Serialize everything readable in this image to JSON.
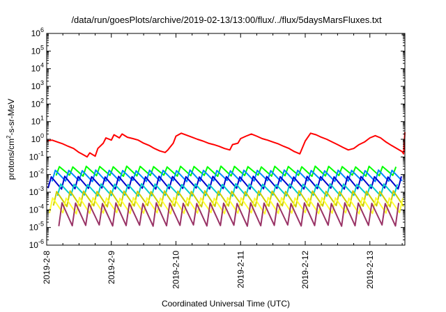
{
  "chart_data": {
    "type": "line",
    "title": "/data/run/goesPlots/archive/2019-02-13/13:00/flux/../flux/5daysMarsFluxes.txt",
    "xlabel": "Coordinated Universal Time (UTC)",
    "ylabel_parts": [
      "protons/cm",
      "2",
      "-s-sr-MeV"
    ],
    "y_scale": "log",
    "ylim": [
      1e-06,
      1000000.0
    ],
    "xlim": [
      "2019-02-08 00:00",
      "2019-02-13 13:00"
    ],
    "grid": false,
    "legend": "none",
    "x_ticks": [
      "2019-2-8",
      "2019-2-9",
      "2019-2-10",
      "2019-2-11",
      "2019-2-12",
      "2019-2-13"
    ],
    "y_ticks": [
      {
        "base": "10",
        "exp": "-6"
      },
      {
        "base": "10",
        "exp": "-5"
      },
      {
        "base": "10",
        "exp": "-4"
      },
      {
        "base": "10",
        "exp": "-3"
      },
      {
        "base": "10",
        "exp": "-2"
      },
      {
        "base": "10",
        "exp": "-1"
      },
      {
        "base": "10",
        "exp": "0"
      },
      {
        "base": "10",
        "exp": "1"
      },
      {
        "base": "10",
        "exp": "2"
      },
      {
        "base": "10",
        "exp": "3"
      },
      {
        "base": "10",
        "exp": "4"
      },
      {
        "base": "10",
        "exp": "5"
      },
      {
        "base": "10",
        "exp": "6"
      }
    ],
    "series": [
      {
        "color": "#ff0000",
        "x": [
          "2019-02-08 00:00",
          "2019-02-08 02:00",
          "2019-02-08 04:00",
          "2019-02-08 06:00",
          "2019-02-08 08:00",
          "2019-02-08 10:00",
          "2019-02-08 12:00",
          "2019-02-08 13:00",
          "2019-02-08 15:00",
          "2019-02-08 16:00",
          "2019-02-08 18:00",
          "2019-02-08 19:00",
          "2019-02-08 21:00",
          "2019-02-08 22:00",
          "2019-02-09 00:00",
          "2019-02-09 01:00",
          "2019-02-09 03:00",
          "2019-02-09 04:00",
          "2019-02-09 06:00",
          "2019-02-09 08:00",
          "2019-02-09 10:00",
          "2019-02-09 12:00",
          "2019-02-09 14:00",
          "2019-02-09 16:00",
          "2019-02-09 18:00",
          "2019-02-09 20:00",
          "2019-02-09 21:00",
          "2019-02-09 23:00",
          "2019-02-10 00:00",
          "2019-02-10 02:00",
          "2019-02-10 04:00",
          "2019-02-10 06:00",
          "2019-02-10 08:00",
          "2019-02-10 10:00",
          "2019-02-10 12:00",
          "2019-02-10 14:00",
          "2019-02-10 16:00",
          "2019-02-10 18:00",
          "2019-02-10 20:00",
          "2019-02-10 21:00",
          "2019-02-10 23:00",
          "2019-02-11 00:00",
          "2019-02-11 02:00",
          "2019-02-11 04:00",
          "2019-02-11 06:00",
          "2019-02-11 08:00",
          "2019-02-11 10:00",
          "2019-02-11 12:00",
          "2019-02-11 14:00",
          "2019-02-11 16:00",
          "2019-02-11 18:00",
          "2019-02-11 20:00",
          "2019-02-11 22:00",
          "2019-02-12 00:00",
          "2019-02-12 02:00",
          "2019-02-12 04:00",
          "2019-02-12 06:00",
          "2019-02-12 08:00",
          "2019-02-12 10:00",
          "2019-02-12 12:00",
          "2019-02-12 14:00",
          "2019-02-12 16:00",
          "2019-02-12 18:00",
          "2019-02-12 20:00",
          "2019-02-12 22:00",
          "2019-02-13 00:00",
          "2019-02-13 02:00",
          "2019-02-13 04:00",
          "2019-02-13 06:00",
          "2019-02-13 08:00",
          "2019-02-13 10:00",
          "2019-02-13 12:00",
          "2019-02-13 12:30",
          "2019-02-13 13:00"
        ],
        "y": [
          0.8,
          0.9,
          0.7,
          0.55,
          0.4,
          0.3,
          0.18,
          0.15,
          0.1,
          0.17,
          0.11,
          0.3,
          0.6,
          1.2,
          0.9,
          1.8,
          1.2,
          2.0,
          1.3,
          1.1,
          0.9,
          0.6,
          0.45,
          0.3,
          0.22,
          0.18,
          0.25,
          0.6,
          1.5,
          2.2,
          1.7,
          1.3,
          1.0,
          0.8,
          0.6,
          0.5,
          0.4,
          0.3,
          0.25,
          0.5,
          0.6,
          1.1,
          1.5,
          2.0,
          1.5,
          1.1,
          0.9,
          0.7,
          0.55,
          0.4,
          0.3,
          0.2,
          0.15,
          0.8,
          2.2,
          1.8,
          1.3,
          1.0,
          0.7,
          0.5,
          0.35,
          0.25,
          0.3,
          0.5,
          0.7,
          1.2,
          1.6,
          1.2,
          0.7,
          0.45,
          0.3,
          0.2,
          0.15,
          2.5
        ]
      },
      {
        "color": "#00ff00",
        "oscillation": {
          "low": 0.008,
          "high": 0.03
        }
      },
      {
        "color": "#0088ff",
        "oscillation": {
          "low": 0.004,
          "high": 0.018
        }
      },
      {
        "color": "#0000cc",
        "oscillation": {
          "low": 0.0015,
          "high": 0.008
        }
      },
      {
        "color": "#00cccc",
        "oscillation": {
          "low": 0.0006,
          "high": 0.003
        }
      },
      {
        "color": "#cccc00",
        "oscillation": {
          "low": 0.00015,
          "high": 0.0012
        }
      },
      {
        "color": "#ffff33",
        "oscillation": {
          "low": 6e-05,
          "high": 0.0005
        }
      },
      {
        "color": "#993366",
        "oscillation": {
          "low": 1.2e-05,
          "high": 0.00025
        }
      }
    ]
  }
}
